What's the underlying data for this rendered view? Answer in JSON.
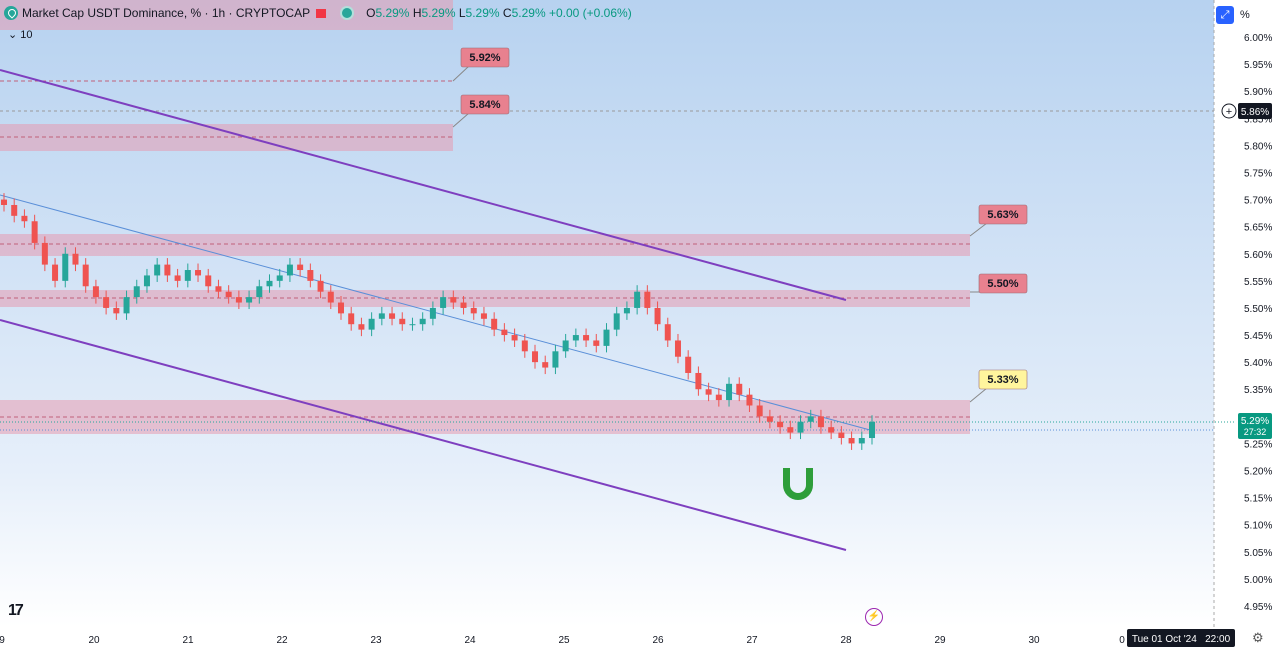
{
  "header": {
    "title": "Market Cap USDT Dominance, % · 1h · CRYPTOCAP",
    "o_label": "O",
    "o_value": "5.29%",
    "h_label": "H",
    "h_value": "5.29%",
    "l_label": "L",
    "l_value": "5.29%",
    "c_label": "C",
    "c_value": "5.29%",
    "change": "+0.00 (+0.06%)",
    "volume_toggle": "10"
  },
  "toolbar": {
    "scale_button": "%",
    "auto_icon": "auto-scale-icon"
  },
  "price_axis": {
    "ticks": [
      "6.00%",
      "5.95%",
      "5.90%",
      "5.85%",
      "5.80%",
      "5.75%",
      "5.70%",
      "5.65%",
      "5.60%",
      "5.55%",
      "5.50%",
      "5.45%",
      "5.40%",
      "5.35%",
      "5.30%",
      "5.25%",
      "5.20%",
      "5.15%",
      "5.10%",
      "5.05%",
      "5.00%",
      "4.95%"
    ],
    "crosshair_label": "5.86%",
    "last_price_label": "5.29%",
    "countdown": "27:32"
  },
  "time_axis": {
    "ticks": [
      "9",
      "20",
      "21",
      "22",
      "23",
      "24",
      "25",
      "26",
      "27",
      "28",
      "29",
      "30",
      "0"
    ],
    "crosshair_label": "Tue 01 Oct '24   22:00"
  },
  "annotations": [
    "5.92%",
    "5.84%",
    "5.63%",
    "5.50%",
    "5.33%"
  ],
  "colors": {
    "up": "#26a69a",
    "down": "#ef5350",
    "channel": "#7e3fbf",
    "zone": "#e59bb0",
    "annotation_red": "#e8818f",
    "annotation_yellow": "#fff59d",
    "magnet": "#2e9e3a"
  },
  "chart_data": {
    "type": "candlestick",
    "symbol": "CRYPTOCAP:USDT.D",
    "interval": "1h",
    "ylim": [
      4.95,
      6.0
    ],
    "series": [
      {
        "values": [
          5.69,
          5.67,
          5.66,
          5.62,
          5.58,
          5.55,
          5.6,
          5.58,
          5.54,
          5.52,
          5.5,
          5.49,
          5.52,
          5.54,
          5.56,
          5.58,
          5.56,
          5.55,
          5.57,
          5.56,
          5.54,
          5.53,
          5.52,
          5.51,
          5.52,
          5.54,
          5.55,
          5.56,
          5.58,
          5.57,
          5.55,
          5.53,
          5.51,
          5.49,
          5.47,
          5.46,
          5.48,
          5.49,
          5.48,
          5.47,
          5.47,
          5.48,
          5.5,
          5.52,
          5.51,
          5.5,
          5.49,
          5.48,
          5.46,
          5.45,
          5.44,
          5.42,
          5.4,
          5.39,
          5.42,
          5.44,
          5.45,
          5.44,
          5.43,
          5.46,
          5.49,
          5.5,
          5.53,
          5.5,
          5.47,
          5.44,
          5.41,
          5.38,
          5.35,
          5.34,
          5.33,
          5.36,
          5.34,
          5.32,
          5.3,
          5.29,
          5.28,
          5.27,
          5.29,
          5.3,
          5.28,
          5.27,
          5.26,
          5.25,
          5.26,
          5.29
        ]
      }
    ]
  }
}
